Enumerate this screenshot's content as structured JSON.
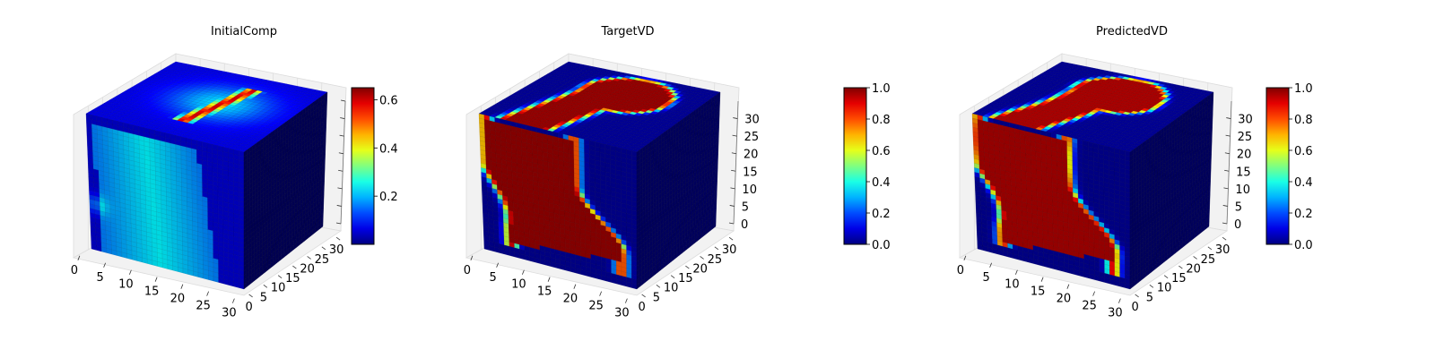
{
  "chart_data": [
    {
      "type": "heatmap",
      "subtype": "3d-voxel",
      "title": "InitialComp",
      "x_ticks": [
        "0",
        "5",
        "10",
        "15",
        "20",
        "25",
        "30"
      ],
      "y_ticks": [
        "0",
        "5",
        "10",
        "15",
        "20",
        "25",
        "30"
      ],
      "z_ticks": [
        "",
        "",
        "",
        "",
        "",
        "",
        "",
        ""
      ],
      "colorbar": {
        "min": 0.0,
        "max": 0.65,
        "ticks": [
          "0.2",
          "0.4",
          "0.6"
        ],
        "tick_values": [
          0.2,
          0.4,
          0.6
        ],
        "colormap": "jet"
      },
      "pattern": "initial"
    },
    {
      "type": "heatmap",
      "subtype": "3d-voxel",
      "title": "TargetVD",
      "x_ticks": [
        "0",
        "5",
        "10",
        "15",
        "20",
        "25",
        "30"
      ],
      "y_ticks": [
        "0",
        "5",
        "10",
        "15",
        "20",
        "25",
        "30"
      ],
      "z_ticks": [
        "0",
        "5",
        "10",
        "15",
        "20",
        "25",
        "30"
      ],
      "colorbar": {
        "min": 0.0,
        "max": 1.0,
        "ticks": [
          "0.0",
          "0.2",
          "0.4",
          "0.6",
          "0.8",
          "1.0"
        ],
        "tick_values": [
          0,
          0.2,
          0.4,
          0.6,
          0.8,
          1.0
        ],
        "colormap": "jet"
      },
      "pattern": "target"
    },
    {
      "type": "heatmap",
      "subtype": "3d-voxel",
      "title": "PredictedVD",
      "x_ticks": [
        "0",
        "5",
        "10",
        "15",
        "20",
        "25",
        "30"
      ],
      "y_ticks": [
        "0",
        "5",
        "10",
        "15",
        "20",
        "25",
        "30"
      ],
      "z_ticks": [
        "0",
        "5",
        "10",
        "15",
        "20",
        "25",
        "30"
      ],
      "colorbar": {
        "min": 0.0,
        "max": 1.0,
        "ticks": [
          "0.0",
          "0.2",
          "0.4",
          "0.6",
          "0.8",
          "1.0"
        ],
        "tick_values": [
          0,
          0.2,
          0.4,
          0.6,
          0.8,
          1.0
        ],
        "colormap": "jet"
      },
      "pattern": "predicted"
    }
  ],
  "colors": {
    "background": "#ffffff",
    "pane": "#f2f2f2",
    "pane_grid": "#dcdcdc",
    "axis": "#555555"
  }
}
